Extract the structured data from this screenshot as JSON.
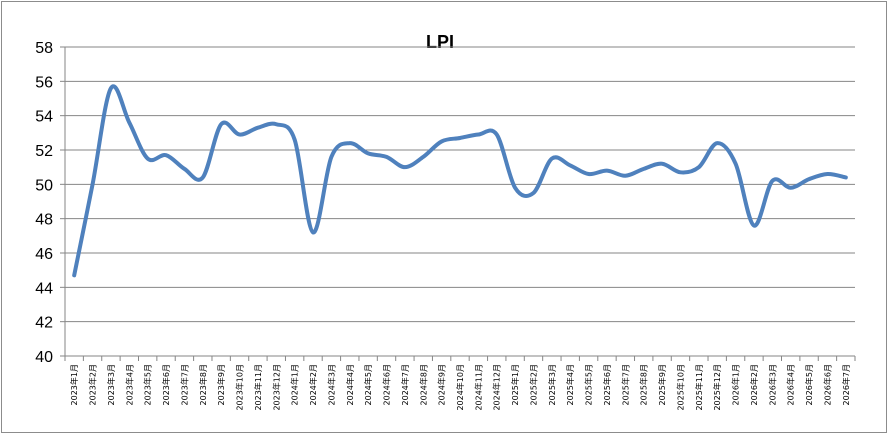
{
  "chart_data": {
    "type": "line",
    "title": "LPI",
    "xlabel": "",
    "ylabel": "",
    "ylim": [
      40,
      58
    ],
    "yticks": [
      40,
      42,
      44,
      46,
      48,
      50,
      52,
      54,
      56,
      58
    ],
    "grid": true,
    "legend": "none",
    "line_color": "#4F81BD",
    "categories": [
      "2023年1月",
      "2023年2月",
      "2023年3月",
      "2023年4月",
      "2023年5月",
      "2023年6月",
      "2023年7月",
      "2023年8月",
      "2023年9月",
      "2023年10月",
      "2023年11月",
      "2023年12月",
      "2024年1月",
      "2024年2月",
      "2024年3月",
      "2024年4月",
      "2024年5月",
      "2024年6月",
      "2024年7月",
      "2024年8月",
      "2024年9月",
      "2024年10月",
      "2024年11月",
      "2024年12月",
      "2025年1月",
      "2025年2月",
      "2025年3月",
      "2025年4月",
      "2025年5月",
      "2025年6月",
      "2025年7月",
      "2025年8月",
      "2025年9月",
      "2025年10月",
      "2025年11月",
      "2025年12月",
      "2026年1月",
      "2026年2月",
      "2026年3月",
      "2026年4月",
      "2026年5月",
      "2026年6月",
      "2026年7月"
    ],
    "series": [
      {
        "name": "",
        "values": [
          44.7,
          50.0,
          55.6,
          53.6,
          51.5,
          51.7,
          50.9,
          50.4,
          53.5,
          52.9,
          53.3,
          53.5,
          52.6,
          47.2,
          51.6,
          52.4,
          51.8,
          51.6,
          51.0,
          51.6,
          52.5,
          52.7,
          52.9,
          52.9,
          49.8,
          49.5,
          51.5,
          51.1,
          50.6,
          50.8,
          50.5,
          50.9,
          51.2,
          50.7,
          51.0,
          52.4,
          51.2,
          47.6,
          50.2,
          49.8,
          50.3,
          50.6,
          50.4
        ]
      }
    ]
  }
}
